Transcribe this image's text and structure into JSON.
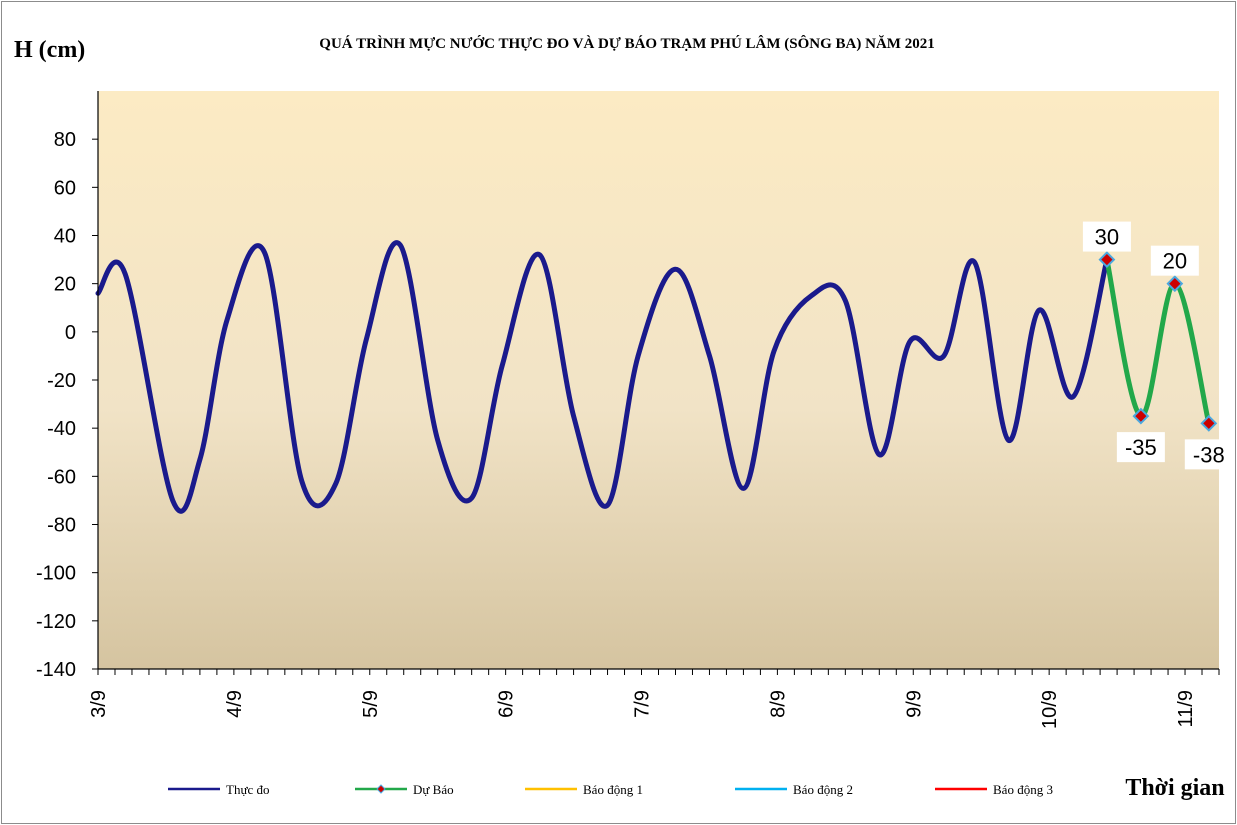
{
  "chart_data": {
    "type": "line",
    "title": "QUÁ TRÌNH MỰC NƯỚC THỰC ĐO VÀ DỰ BÁO TRẠM PHÚ LÂM (SÔNG BA) NĂM 2021",
    "ylabel": "H (cm)",
    "xlabel": "Thời gian",
    "ylim": [
      -140,
      100
    ],
    "yticks": [
      -140,
      -120,
      -100,
      -80,
      -60,
      -40,
      -20,
      0,
      20,
      40,
      60,
      80
    ],
    "xlim": [
      0,
      33
    ],
    "xticks": [
      {
        "x": 0,
        "label": "3/9"
      },
      {
        "x": 4,
        "label": "4/9"
      },
      {
        "x": 8,
        "label": "5/9"
      },
      {
        "x": 12,
        "label": "6/9"
      },
      {
        "x": 16,
        "label": "7/9"
      },
      {
        "x": 20,
        "label": "8/9"
      },
      {
        "x": 24,
        "label": "9/9"
      },
      {
        "x": 28,
        "label": "10/9"
      },
      {
        "x": 32,
        "label": "11/9"
      }
    ],
    "series": [
      {
        "name": "Thực đo",
        "color": "#1a1a8c",
        "points": [
          [
            0.0,
            16
          ],
          [
            0.8,
            24
          ],
          [
            2.2,
            -70
          ],
          [
            3.0,
            -53
          ],
          [
            3.8,
            5
          ],
          [
            4.9,
            33
          ],
          [
            6.0,
            -62
          ],
          [
            7.0,
            -63
          ],
          [
            7.9,
            -3
          ],
          [
            8.9,
            36
          ],
          [
            10.0,
            -45
          ],
          [
            11.0,
            -69
          ],
          [
            11.9,
            -14
          ],
          [
            13.0,
            32
          ],
          [
            14.0,
            -35
          ],
          [
            15.0,
            -72
          ],
          [
            15.9,
            -10
          ],
          [
            17.0,
            26
          ],
          [
            18.0,
            -10
          ],
          [
            19.0,
            -65
          ],
          [
            19.9,
            -8
          ],
          [
            21.0,
            15
          ],
          [
            22.0,
            13
          ],
          [
            23.0,
            -51
          ],
          [
            23.9,
            -4
          ],
          [
            24.9,
            -10
          ],
          [
            25.8,
            29
          ],
          [
            26.8,
            -45
          ],
          [
            27.7,
            9
          ],
          [
            28.7,
            -27
          ],
          [
            29.7,
            30
          ]
        ]
      },
      {
        "name": "Dự Báo",
        "color": "#22a84a",
        "marker_color": "#cc0000",
        "points": [
          [
            29.7,
            30
          ],
          [
            30.7,
            -35
          ],
          [
            31.7,
            20
          ],
          [
            32.7,
            -38
          ]
        ],
        "labels": [
          "30",
          "-35",
          "20",
          "-38"
        ]
      },
      {
        "name": "Báo động 1",
        "color": "#ffc000",
        "points": []
      },
      {
        "name": "Báo động 2",
        "color": "#00b0f0",
        "points": []
      },
      {
        "name": "Báo động 3",
        "color": "#ff0000",
        "points": []
      }
    ],
    "grid": false,
    "legend": "bottom"
  }
}
